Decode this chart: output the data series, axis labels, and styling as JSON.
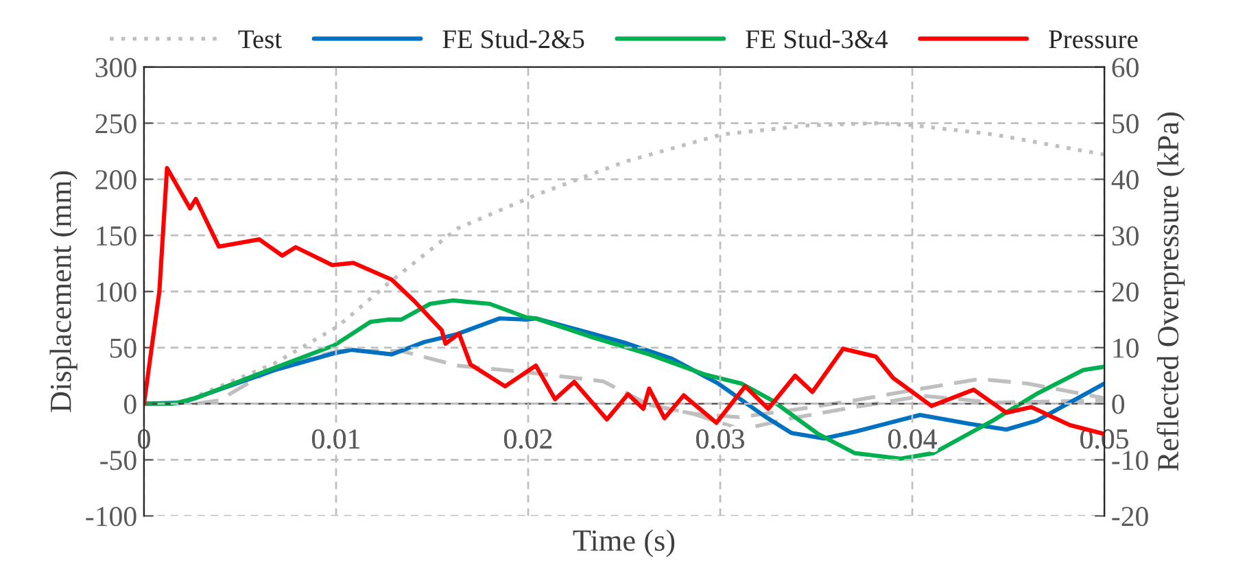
{
  "chart_data": {
    "type": "line",
    "xlabel": "Time (s)",
    "ylabel": "Displacement (mm)",
    "y2label": "Reflected Overpressure (kPa)",
    "xlim": [
      0,
      0.05
    ],
    "xticks": [
      0,
      0.01,
      0.02,
      0.03,
      0.04,
      0.05
    ],
    "ylim": [
      -100,
      300
    ],
    "yticks": [
      -100,
      -50,
      0,
      50,
      100,
      150,
      200,
      250,
      300
    ],
    "y2lim": [
      -20,
      60
    ],
    "y2ticks": [
      -20,
      -10,
      0,
      10,
      20,
      30,
      40,
      50,
      60
    ],
    "grid": true,
    "legend": "top",
    "series": [
      {
        "name": "Test",
        "color": "#bfbfbf",
        "line_style": "dotted",
        "x": [
          0.0018,
          0.0068,
          0.0101,
          0.0127,
          0.0163,
          0.0204,
          0.0251,
          0.0301,
          0.0346,
          0.0381,
          0.0401,
          0.0442,
          0.05
        ],
        "values": [
          0,
          36,
          69,
          107,
          156,
          186,
          216,
          240,
          248,
          250,
          248,
          240,
          222
        ]
      },
      {
        "color": "#bfbfbf",
        "line_style": "dashed",
        "x": [
          0.0027,
          0.0039,
          0.0068,
          0.0101,
          0.0134,
          0.0163,
          0.0199,
          0.0239,
          0.0263,
          0.0286,
          0.0311,
          0.0337,
          0.037,
          0.0406,
          0.0442,
          0.05
        ],
        "values": [
          0,
          3,
          32,
          47,
          47,
          34,
          28,
          20,
          -1,
          -9,
          -23,
          -13,
          -3,
          7,
          1,
          3
        ]
      },
      {
        "color": "#bfbfbf",
        "line_style": "dashed",
        "x": [
          0.0263,
          0.0286,
          0.031,
          0.034,
          0.037,
          0.04,
          0.0435,
          0.046,
          0.05
        ],
        "values": [
          -1,
          -9,
          -12,
          -5,
          3,
          12,
          22,
          18,
          5
        ]
      },
      {
        "name": "FE Stud-2&5",
        "color": "#0070c0",
        "line_style": "solid",
        "x": [
          0,
          0.002,
          0.0068,
          0.0099,
          0.0108,
          0.0129,
          0.0146,
          0.0163,
          0.0185,
          0.0199,
          0.0204,
          0.0232,
          0.0251,
          0.0275,
          0.0299,
          0.0323,
          0.0337,
          0.0354,
          0.037,
          0.0404,
          0.043,
          0.0449,
          0.0465,
          0.05
        ],
        "values": [
          0,
          1,
          30,
          45,
          48,
          44,
          55,
          62,
          76,
          75,
          76,
          63,
          54,
          40,
          18,
          -11,
          -26,
          -31,
          -25,
          -10,
          -18,
          -23,
          -15,
          18
        ]
      },
      {
        "name": "FE Stud-3&4",
        "color": "#00b050",
        "line_style": "solid",
        "x": [
          0,
          0.0015,
          0.0027,
          0.0068,
          0.0099,
          0.0118,
          0.0127,
          0.0134,
          0.0149,
          0.0161,
          0.018,
          0.0199,
          0.0204,
          0.0232,
          0.0263,
          0.0292,
          0.0311,
          0.0327,
          0.0351,
          0.037,
          0.0394,
          0.0411,
          0.0442,
          0.0465,
          0.0489,
          0.05
        ],
        "values": [
          0,
          0,
          5,
          32,
          52,
          73,
          75,
          75,
          89,
          92,
          89,
          77,
          76,
          60,
          44,
          26,
          18,
          3,
          -27,
          -44,
          -49,
          -44,
          -15,
          9,
          30,
          33
        ]
      },
      {
        "name": "Pressure",
        "color": "#ff0000",
        "line_style": "solid",
        "axis": "y2",
        "x": [
          0,
          0.0008,
          0.0012,
          0.0024,
          0.0027,
          0.0039,
          0.006,
          0.0072,
          0.0079,
          0.0098,
          0.0109,
          0.0129,
          0.0141,
          0.0155,
          0.0157,
          0.0164,
          0.017,
          0.0188,
          0.0204,
          0.0214,
          0.0224,
          0.0241,
          0.0252,
          0.026,
          0.0263,
          0.0271,
          0.0281,
          0.0298,
          0.0313,
          0.0325,
          0.0339,
          0.0348,
          0.0364,
          0.0381,
          0.039,
          0.041,
          0.0432,
          0.0449,
          0.0462,
          0.0482,
          0.05
        ],
        "values": [
          0,
          20,
          42,
          34.8,
          36.5,
          28,
          29.3,
          26.4,
          27.9,
          24.7,
          25.1,
          22.1,
          18.2,
          13.1,
          10.7,
          12.5,
          7,
          3.1,
          6.8,
          0.8,
          3.9,
          -2.8,
          1.7,
          -0.9,
          2.7,
          -2.6,
          1.5,
          -3.4,
          3.1,
          -0.9,
          5,
          2.1,
          9.8,
          8.4,
          4.6,
          -0.4,
          2.5,
          -1.6,
          -0.6,
          -3.8,
          -5.4
        ]
      }
    ]
  }
}
